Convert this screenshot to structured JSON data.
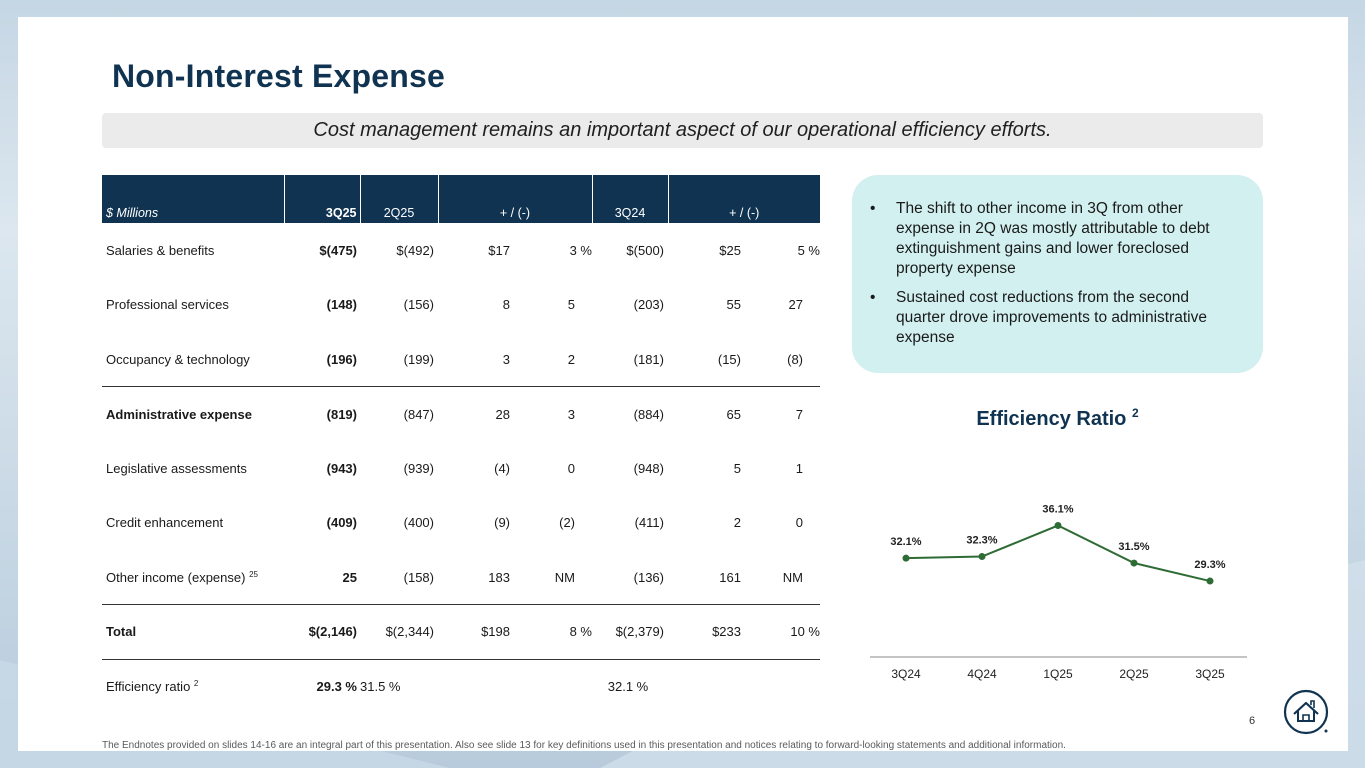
{
  "slide": {
    "title": "Non-Interest Expense",
    "subtitle": "Cost management remains an important aspect of our operational efficiency efforts.",
    "page_number": "6",
    "footnote": "The Endnotes provided on slides 14-16 are an integral part of this presentation. Also see slide 13 for key definitions used in this presentation and notices relating to forward-looking statements and additional information.",
    "logo_icon": "house-seal-icon"
  },
  "table": {
    "headers": [
      "$ Millions",
      "3Q25",
      "2Q25",
      "+ / (-)",
      "3Q24",
      "+ / (-)"
    ],
    "rows": [
      {
        "label": "Salaries & benefits",
        "sup": "",
        "q3_25": "$(475)",
        "q2_25": "$(492)",
        "d1": "$17",
        "p1": "3 %",
        "q3_24": "$(500)",
        "d2": "$25",
        "p2": "5 %"
      },
      {
        "label": "Professional services",
        "sup": "",
        "q3_25": "(148)",
        "q2_25": "(156)",
        "d1": "8",
        "p1": "5",
        "q3_24": "(203)",
        "d2": "55",
        "p2": "27"
      },
      {
        "label": "Occupancy & technology",
        "sup": "",
        "q3_25": "(196)",
        "q2_25": "(199)",
        "d1": "3",
        "p1": "2",
        "q3_24": "(181)",
        "d2": "(15)",
        "p2": "(8)"
      },
      {
        "label": "Administrative expense",
        "sup": "",
        "q3_25": "(819)",
        "q2_25": "(847)",
        "d1": "28",
        "p1": "3",
        "q3_24": "(884)",
        "d2": "65",
        "p2": "7"
      },
      {
        "label": "Legislative assessments",
        "sup": "",
        "q3_25": "(943)",
        "q2_25": "(939)",
        "d1": "(4)",
        "p1": "0",
        "q3_24": "(948)",
        "d2": "5",
        "p2": "1"
      },
      {
        "label": "Credit enhancement",
        "sup": "",
        "q3_25": "(409)",
        "q2_25": "(400)",
        "d1": "(9)",
        "p1": "(2)",
        "q3_24": "(411)",
        "d2": "2",
        "p2": "0"
      },
      {
        "label": "Other income (expense)",
        "sup": "25",
        "q3_25": "25",
        "q2_25": "(158)",
        "d1": "183",
        "p1": "NM",
        "q3_24": "(136)",
        "d2": "161",
        "p2": "NM"
      },
      {
        "label": "Total",
        "sup": "",
        "q3_25": "$(2,146)",
        "q2_25": "$(2,344)",
        "d1": "$198",
        "p1": "8 %",
        "q3_24": "$(2,379)",
        "d2": "$233",
        "p2": "10 %"
      },
      {
        "label": "Efficiency ratio",
        "sup": "2",
        "q3_25": "29.3 %",
        "q2_25": "31.5 %",
        "d1": "",
        "p1": "",
        "q3_24": "32.1 %",
        "d2": "",
        "p2": ""
      }
    ]
  },
  "callout": {
    "bullet_glyph": "•",
    "bullets": [
      "The shift to other income in 3Q from other expense in 2Q was mostly attributable to debt extinguishment gains and lower foreclosed property expense",
      "Sustained cost reductions from the second quarter drove improvements to administrative expense"
    ]
  },
  "chart_title": {
    "text": "Efficiency Ratio",
    "sup": "2"
  },
  "chart_data": {
    "type": "line",
    "title": "Efficiency Ratio 2",
    "categories": [
      "3Q24",
      "4Q24",
      "1Q25",
      "2Q25",
      "3Q25"
    ],
    "values": [
      32.1,
      32.3,
      36.1,
      31.5,
      29.3
    ],
    "labels": [
      "32.1%",
      "32.3%",
      "36.1%",
      "31.5%",
      "29.3%"
    ],
    "xlabel": "",
    "ylabel": "",
    "ylim": [
      20,
      38
    ],
    "grid": false,
    "line_color": "#2e6b35"
  }
}
